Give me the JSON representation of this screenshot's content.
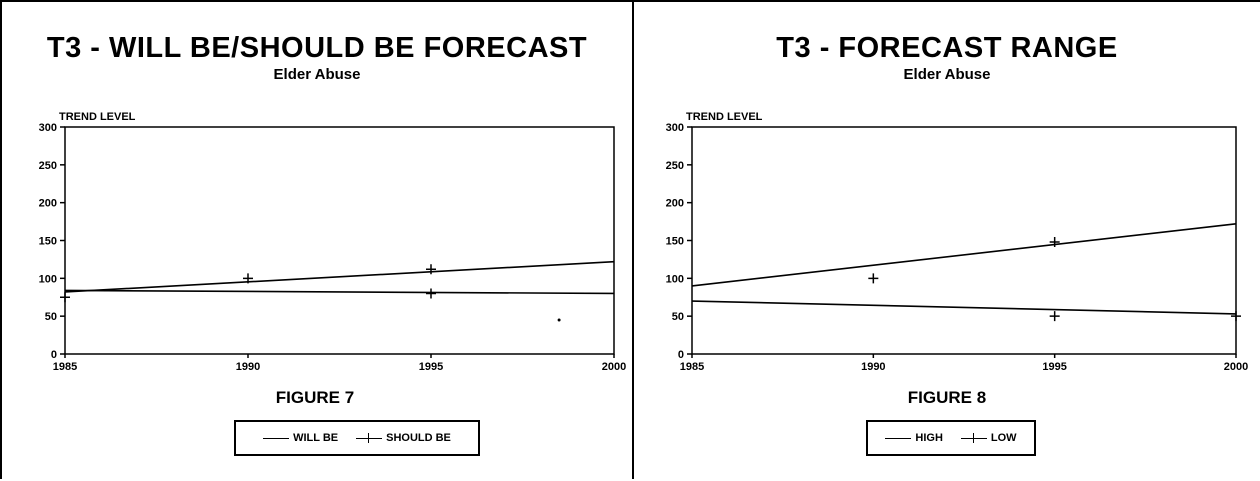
{
  "panels": [
    {
      "title": "T3 - WILL BE/SHOULD BE FORECAST",
      "subtitle": "Elder Abuse",
      "figure": "FIGURE 7",
      "legend": [
        {
          "label": "WILL BE",
          "marker": "line"
        },
        {
          "label": "SHOULD BE",
          "marker": "plus"
        }
      ]
    },
    {
      "title": "T3 - FORECAST RANGE",
      "subtitle": "Elder Abuse",
      "figure": "FIGURE 8",
      "legend": [
        {
          "label": "HIGH",
          "marker": "line"
        },
        {
          "label": "LOW",
          "marker": "plus"
        }
      ]
    }
  ],
  "chart_data": [
    {
      "type": "line",
      "title": "T3 - WILL BE/SHOULD BE FORECAST",
      "subtitle": "Elder Abuse",
      "ylabel": "TREND LEVEL",
      "xlabel": "",
      "x_ticks": [
        "1985",
        "1990",
        "1995",
        "2000"
      ],
      "y_ticks": [
        "0",
        "50",
        "100",
        "150",
        "200",
        "250",
        "300"
      ],
      "xlim": [
        1985,
        2000
      ],
      "ylim": [
        0,
        300
      ],
      "series": [
        {
          "name": "WILL BE",
          "style": "line",
          "x": [
            1985,
            2000
          ],
          "y": [
            82,
            122
          ]
        },
        {
          "name": "SHOULD BE",
          "style": "line",
          "x": [
            1985,
            2000
          ],
          "y": [
            84,
            80
          ]
        }
      ],
      "markers": [
        {
          "x": 1985,
          "y": 75
        },
        {
          "x": 1990,
          "y": 100
        },
        {
          "x": 1995,
          "y": 112
        },
        {
          "x": 1995,
          "y": 80
        }
      ],
      "dots": [
        {
          "x": 1998.5,
          "y": 45
        }
      ],
      "figure_caption": "FIGURE 7"
    },
    {
      "type": "line",
      "title": "T3 - FORECAST RANGE",
      "subtitle": "Elder Abuse",
      "ylabel": "TREND LEVEL",
      "xlabel": "",
      "x_ticks": [
        "1985",
        "1990",
        "1995",
        "2000"
      ],
      "y_ticks": [
        "0",
        "50",
        "100",
        "150",
        "200",
        "250",
        "300"
      ],
      "xlim": [
        1985,
        2000
      ],
      "ylim": [
        0,
        300
      ],
      "series": [
        {
          "name": "HIGH",
          "style": "line",
          "x": [
            1985,
            2000
          ],
          "y": [
            90,
            172
          ]
        },
        {
          "name": "LOW",
          "style": "line",
          "x": [
            1985,
            2000
          ],
          "y": [
            70,
            53
          ]
        }
      ],
      "markers": [
        {
          "x": 1990,
          "y": 100
        },
        {
          "x": 1995,
          "y": 148
        },
        {
          "x": 1995,
          "y": 50
        },
        {
          "x": 2000,
          "y": 50
        }
      ],
      "dots": [],
      "figure_caption": "FIGURE 8"
    }
  ]
}
